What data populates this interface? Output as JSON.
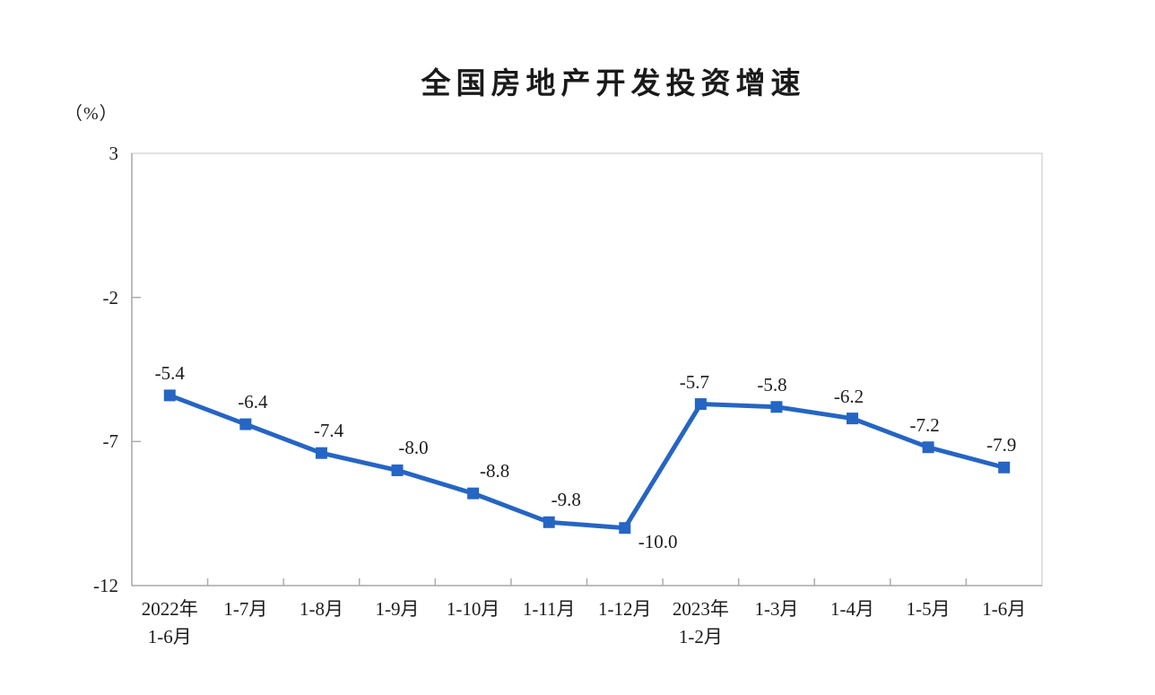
{
  "chart_data": {
    "type": "line",
    "title": "全国房地产开发投资增速",
    "unit_label": "（%）",
    "series_name": "全国房地产开发投资增速",
    "categories": [
      "2022年\n1-6月",
      "1-7月",
      "1-8月",
      "1-9月",
      "1-10月",
      "1-11月",
      "1-12月",
      "2023年\n1-2月",
      "1-3月",
      "1-4月",
      "1-5月",
      "1-6月"
    ],
    "values": [
      -5.4,
      -6.4,
      -7.4,
      -8.0,
      -8.8,
      -9.8,
      -10.0,
      -5.7,
      -5.8,
      -6.2,
      -7.2,
      -7.9
    ],
    "data_labels": [
      "-5.4",
      "-6.4",
      "-7.4",
      "-8.0",
      "-8.8",
      "-9.8",
      "-10.0",
      "-5.7",
      "-5.8",
      "-6.2",
      "-7.2",
      "-7.9"
    ],
    "xlabel": "",
    "ylabel": "（%）",
    "ylim": [
      -12,
      3
    ],
    "yticks": [
      3,
      -2,
      -7,
      -12
    ],
    "grid": "off",
    "legend": "none",
    "marker": "square",
    "line_color": "#2565C4",
    "axis_color": "#ABABAB",
    "plot_border_color": "#D9D9D9",
    "text_color": "#1c1c1c"
  }
}
